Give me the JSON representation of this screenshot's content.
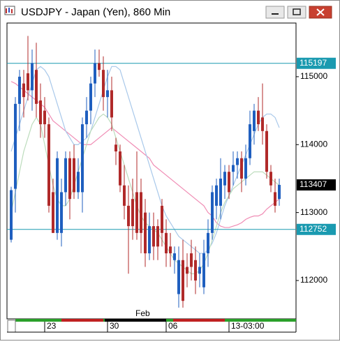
{
  "chart_data": {
    "type": "candlestick",
    "title": "USDJPY - Japan (Yen), 860 Min",
    "categories": [
      null,
      null,
      null,
      null,
      null,
      null,
      null,
      null,
      "23",
      null,
      null,
      null,
      null,
      null,
      null,
      null,
      null,
      null,
      null,
      null,
      null,
      null,
      null,
      "30",
      null,
      null,
      null,
      null,
      null,
      null,
      null,
      null,
      null,
      null,
      null,
      null,
      null,
      "06",
      null,
      null,
      null,
      null,
      null,
      null,
      null,
      null,
      null,
      null,
      null,
      null,
      null,
      null,
      "13-03:00",
      null,
      null,
      null,
      null,
      null,
      null,
      null,
      null,
      null,
      null,
      null,
      null
    ],
    "month_label": "Feb",
    "open": [
      112600,
      113350,
      114600,
      114900,
      115050,
      114800,
      115100,
      114650,
      114500,
      114300,
      113300,
      112700,
      112700,
      113300,
      113800,
      113800,
      113300,
      113300,
      114300,
      114500,
      114900,
      115200,
      115100,
      114700,
      114800,
      114000,
      113900,
      113400,
      113100,
      113200,
      113300,
      113300,
      113000,
      112400,
      112800,
      112800,
      113100,
      112700,
      112500,
      112300,
      111800,
      112300,
      112200,
      112400,
      112300,
      112100,
      111900,
      112400,
      112700,
      113100,
      113100,
      113400,
      113600,
      113600,
      113700,
      113800,
      113500,
      113800,
      114200,
      114500,
      114400,
      114200,
      113600,
      113300,
      113200
    ],
    "high": [
      113380,
      114700,
      115100,
      115100,
      115600,
      115400,
      115500,
      114900,
      114700,
      114400,
      113500,
      113900,
      113500,
      113900,
      113900,
      114000,
      113800,
      114400,
      114700,
      115000,
      115400,
      115400,
      115300,
      115100,
      115000,
      114100,
      114000,
      113700,
      113400,
      113500,
      113900,
      113500,
      113200,
      113000,
      113000,
      112900,
      113200,
      112900,
      112700,
      112500,
      112500,
      112600,
      112400,
      112600,
      112500,
      112400,
      112600,
      112900,
      113400,
      113500,
      113800,
      113700,
      113700,
      113900,
      113900,
      113900,
      114000,
      114500,
      114600,
      114700,
      114900,
      114300,
      113700,
      113500,
      113500
    ],
    "low": [
      112560,
      113000,
      114200,
      114400,
      114650,
      114500,
      114400,
      114100,
      114100,
      113000,
      112700,
      112600,
      112500,
      113100,
      112900,
      113200,
      113200,
      113000,
      114100,
      114300,
      114700,
      115000,
      114500,
      114400,
      114200,
      113700,
      113300,
      112900,
      112100,
      112600,
      112600,
      112400,
      112200,
      112300,
      112300,
      112300,
      112500,
      112200,
      112200,
      112100,
      111600,
      111600,
      111900,
      112000,
      111800,
      111900,
      111800,
      112200,
      112600,
      112900,
      112900,
      113200,
      113200,
      113400,
      113500,
      113300,
      113400,
      113700,
      114000,
      114200,
      114000,
      113500,
      113300,
      113000,
      113100
    ],
    "close": [
      113330,
      114600,
      115000,
      114700,
      114800,
      115200,
      114600,
      114300,
      114300,
      113100,
      112700,
      113800,
      113300,
      113800,
      113200,
      113300,
      113600,
      114300,
      114500,
      114900,
      115200,
      115100,
      114700,
      114800,
      114400,
      113900,
      113400,
      113100,
      112800,
      112800,
      112700,
      112700,
      112400,
      112800,
      112500,
      112500,
      112700,
      112400,
      112400,
      112400,
      112300,
      111700,
      112100,
      112200,
      112000,
      112200,
      112400,
      112700,
      113300,
      113400,
      113500,
      113600,
      113300,
      113700,
      113800,
      113500,
      113800,
      114300,
      114500,
      114300,
      114200,
      113600,
      113400,
      113100,
      113407
    ],
    "up_color": "#1f5fbf",
    "down_color": "#b02a2a",
    "ylim": [
      111435,
      115790
    ],
    "yticks": [
      112000,
      113000,
      114000,
      115000
    ],
    "hlines": {
      "values": [
        115197,
        112752
      ],
      "color": "#1a9ab0"
    },
    "series": [
      {
        "color": "#f08cb4",
        "values": [
          114930,
          114900,
          114850,
          114800,
          114750,
          114700,
          114650,
          114600,
          114550,
          114450,
          114350,
          114300,
          114250,
          114200,
          114150,
          114100,
          114050,
          114000,
          114000,
          114000,
          114050,
          114100,
          114150,
          114200,
          114250,
          114200,
          114150,
          114100,
          114050,
          114000,
          113950,
          113900,
          113850,
          113800,
          113700,
          113650,
          113600,
          113550,
          113500,
          113450,
          113400,
          113350,
          113300,
          113250,
          113200,
          113150,
          113100,
          113000,
          112950,
          112850,
          112800,
          112780,
          112780,
          112800,
          112820,
          112850,
          112900,
          112930,
          112950,
          112950,
          112980,
          113050,
          113100,
          113150,
          113200
        ]
      },
      {
        "color": "#a8c8ea",
        "values": [
          113900,
          114100,
          114300,
          114500,
          114700,
          114900,
          115100,
          115150,
          115100,
          115000,
          114800,
          114600,
          114400,
          114200,
          114100,
          114000,
          114000,
          114050,
          114100,
          114200,
          114400,
          114600,
          114800,
          115000,
          115150,
          115150,
          115100,
          114900,
          114700,
          114500,
          114300,
          114100,
          113900,
          113700,
          113500,
          113300,
          113100,
          112950,
          112850,
          112750,
          112650,
          112600,
          112550,
          112500,
          112450,
          112400,
          112400,
          112450,
          112550,
          112700,
          112900,
          113100,
          113250,
          113400,
          113550,
          113700,
          113850,
          114000,
          114150,
          114300,
          114400,
          114450,
          114450,
          114400,
          114250
        ]
      },
      {
        "color": "#bcdcbc",
        "values": [
          113000,
          113300,
          113600,
          113900,
          114100,
          114300,
          114400,
          114300,
          114000,
          113700,
          113400,
          113200,
          113100,
          113100,
          113200,
          113400,
          113600,
          113800,
          114000,
          114200,
          114300,
          114400,
          114450,
          114400,
          114300,
          114100,
          113900,
          113700,
          113500,
          113300,
          113100,
          112950,
          112850,
          112800,
          112750,
          112700,
          112600,
          112500,
          112400,
          112300,
          112250,
          112200,
          112150,
          112100,
          112100,
          112150,
          112250,
          112400,
          112600,
          112800,
          113000,
          113150,
          113250,
          113350,
          113400,
          113450,
          113500,
          113550,
          113600,
          113600,
          113600,
          113550,
          113500,
          113450,
          113400
        ]
      }
    ]
  }
}
